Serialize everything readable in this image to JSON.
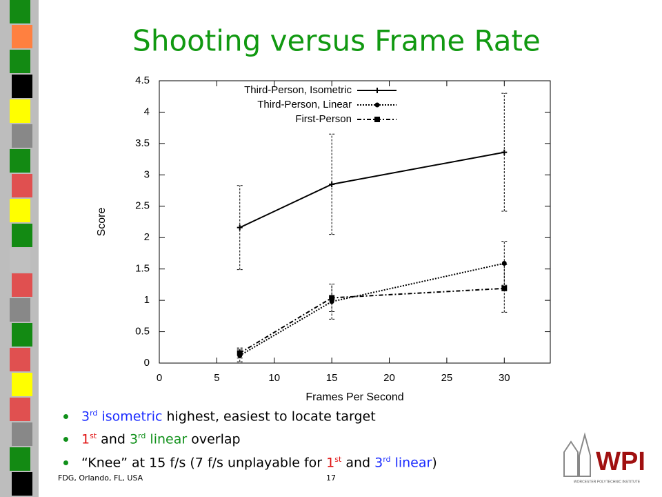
{
  "slide": {
    "title": "Shooting versus Frame Rate",
    "bullets": [
      [
        {
          "text": "3",
          "color": "#1a2bff"
        },
        {
          "text": "rd",
          "color": "#1a2bff",
          "sup": true
        },
        {
          "text": " isometric",
          "color": "#1a2bff"
        },
        {
          "text": " highest, easiest to locate target",
          "color": "#000000"
        }
      ],
      [
        {
          "text": "1",
          "color": "#e01010"
        },
        {
          "text": "st",
          "color": "#e01010",
          "sup": true
        },
        {
          "text": " and ",
          "color": "#000000"
        },
        {
          "text": "3",
          "color": "#10901a"
        },
        {
          "text": "rd",
          "color": "#10901a",
          "sup": true
        },
        {
          "text": " linear",
          "color": "#10901a"
        },
        {
          "text": " overlap",
          "color": "#000000"
        }
      ],
      [
        {
          "text": "“Knee” at 15 f/s (7 f/s unplayable for ",
          "color": "#000000"
        },
        {
          "text": "1",
          "color": "#e01010"
        },
        {
          "text": "st",
          "color": "#e01010",
          "sup": true
        },
        {
          "text": " and ",
          "color": "#000000"
        },
        {
          "text": "3",
          "color": "#1a2bff"
        },
        {
          "text": "rd",
          "color": "#1a2bff",
          "sup": true
        },
        {
          "text": " linear",
          "color": "#1a2bff"
        },
        {
          "text": ")",
          "color": "#000000"
        }
      ]
    ],
    "footer": "FDG, Orlando, FL, USA",
    "page": "17",
    "logo": "WPI",
    "logo_caption": "WORCESTER POLYTECHNIC INSTITUTE"
  },
  "chart_data": {
    "type": "line",
    "x_label": "Frames Per Second",
    "y_label": "Score",
    "x": [
      7,
      15,
      30
    ],
    "xlim": [
      0,
      34
    ],
    "xticks": [
      0,
      5,
      10,
      15,
      20,
      25,
      30
    ],
    "ylim": [
      0,
      4.5
    ],
    "yticks": [
      0,
      0.5,
      1,
      1.5,
      2,
      2.5,
      3,
      3.5,
      4,
      4.5
    ],
    "legend": "top-right",
    "series": [
      {
        "name": "Third-Person, Isometric",
        "color": "#000000",
        "dash": "solid",
        "marker": "plus",
        "values": [
          2.16,
          2.85,
          3.36
        ],
        "errors": [
          0.67,
          0.8,
          0.94
        ]
      },
      {
        "name": "Third-Person, Linear",
        "color": "#000000",
        "dash": "dotted",
        "marker": "circle",
        "values": [
          0.12,
          0.98,
          1.59
        ],
        "errors": [
          0.1,
          0.28,
          0.35
        ]
      },
      {
        "name": "First-Person",
        "color": "#000000",
        "dash": "dashdot",
        "marker": "square",
        "values": [
          0.16,
          1.04,
          1.19
        ],
        "errors": [
          0.08,
          0.22,
          0.38
        ]
      }
    ]
  }
}
